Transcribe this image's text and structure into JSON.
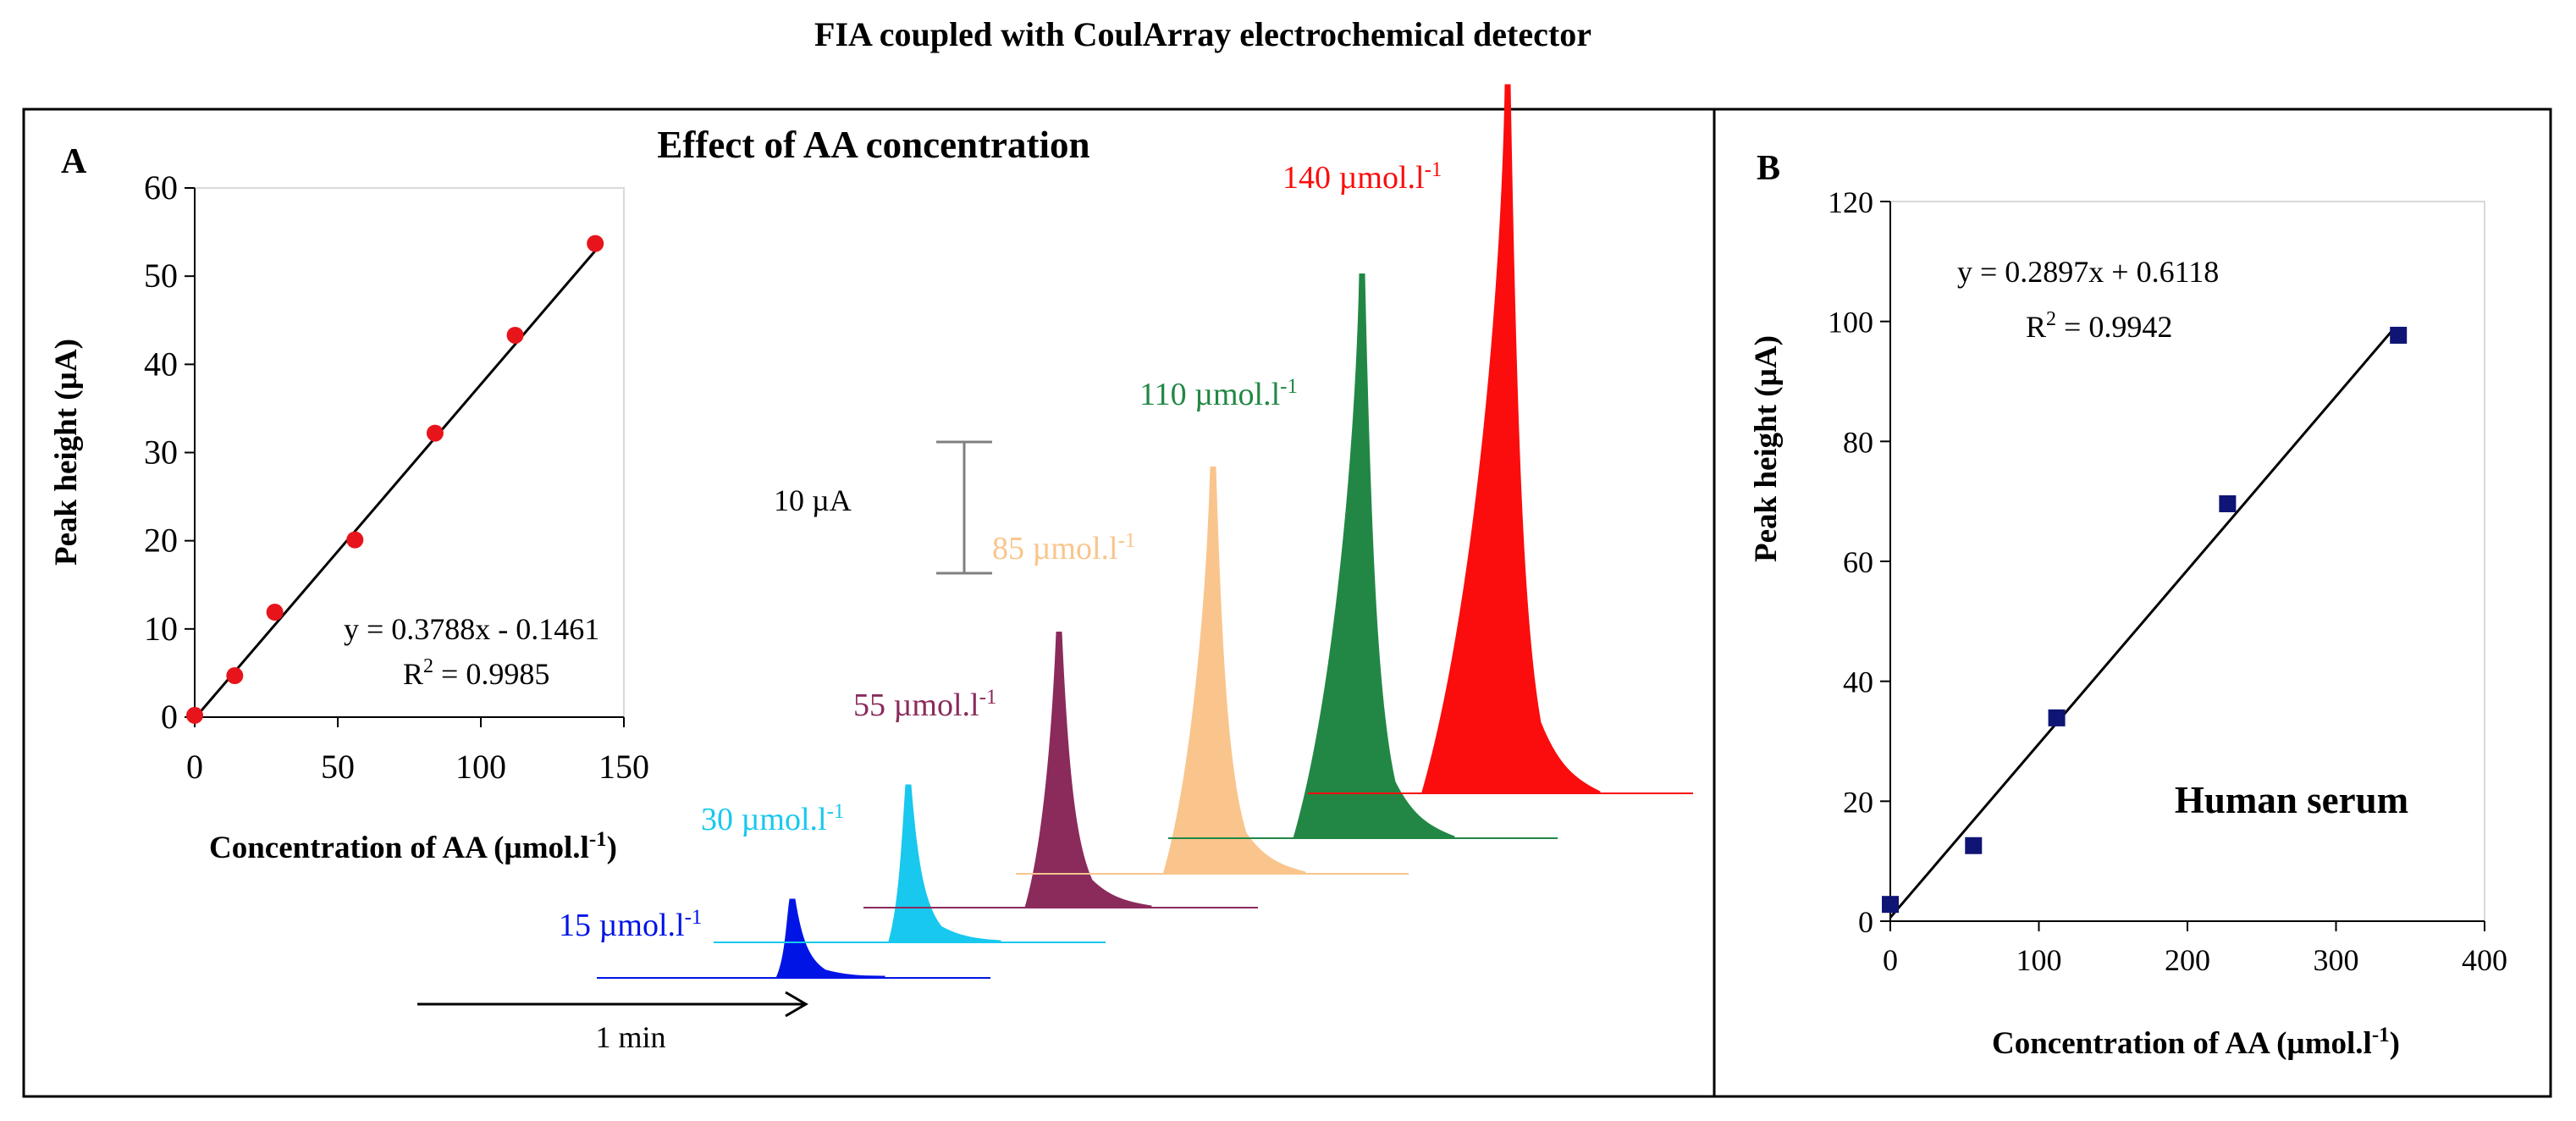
{
  "figure_title": "FIA coupled with CoulArray electrochemical detector",
  "chart_data": [
    {
      "id": "A",
      "type": "scatter",
      "panel_label": "A",
      "title": "Effect of AA concentration",
      "xlabel": "Concentration of AA (µmol.l",
      "xlabel_sup": "-1",
      "xlabel_end": ")",
      "ylabel": "Peak height (µA)",
      "xlim": [
        0,
        150
      ],
      "ylim": [
        0,
        60
      ],
      "xticks": [
        0,
        50,
        100,
        150
      ],
      "yticks": [
        0,
        10,
        20,
        30,
        40,
        50,
        60
      ],
      "marker_color": "#e8141b",
      "marker": "circle",
      "series": [
        {
          "name": "data",
          "x": [
            0,
            14,
            28,
            56,
            84,
            112,
            140
          ],
          "y": [
            0.2,
            4.7,
            11.9,
            20.1,
            32.2,
            43.3,
            53.7
          ]
        }
      ],
      "trendline": {
        "slope": 0.3788,
        "intercept": -0.1461,
        "x_range": [
          0,
          140
        ]
      },
      "equation": "y = 0.3788x - 0.1461",
      "r2_prefix": "R",
      "r2_sup": "2",
      "r2_value": " = 0.9985"
    },
    {
      "id": "B",
      "type": "scatter",
      "panel_label": "B",
      "xlabel": "Concentration of AA (µmol.l",
      "xlabel_sup": "-1",
      "xlabel_end": ")",
      "ylabel": "Peak height (µA)",
      "xlim": [
        0,
        400
      ],
      "ylim": [
        0,
        120
      ],
      "xticks": [
        0,
        100,
        200,
        300,
        400
      ],
      "yticks": [
        0,
        20,
        40,
        60,
        80,
        100,
        120
      ],
      "marker_color": "#0f1574",
      "marker": "square",
      "series": [
        {
          "name": "data",
          "x": [
            0,
            56,
            112,
            227,
            342
          ],
          "y": [
            2.8,
            12.6,
            33.9,
            69.6,
            97.7
          ]
        }
      ],
      "trendline": {
        "slope": 0.2897,
        "intercept": 0.6118,
        "x_range": [
          0,
          338
        ]
      },
      "equation": "y = 0.2897x + 0.6118",
      "r2_prefix": "R",
      "r2_sup": "2",
      "r2_value": " = 0.9942",
      "annotation": "Human serum"
    }
  ],
  "fia_peaks": [
    {
      "label": "15 µmol.l",
      "sup": "-1",
      "color": "#0014e6",
      "peak_height_uA": 6.0
    },
    {
      "label": "30 µmol.l",
      "sup": "-1",
      "color": "#18c8ee",
      "peak_height_uA": 12.0
    },
    {
      "label": "55 µmol.l",
      "sup": "-1",
      "color": "#8a2b5c",
      "peak_height_uA": 21.0
    },
    {
      "label": "85 µmol.l",
      "sup": "-1",
      "color": "#f9c58d",
      "peak_height_uA": 31.0
    },
    {
      "label": "110 µmol.l",
      "sup": "-1",
      "color": "#228745",
      "peak_height_uA": 43.0
    },
    {
      "label": "140 µmol.l",
      "sup": "-1",
      "color": "#fb0d0d",
      "peak_height_uA": 54.0
    }
  ],
  "scale_bar": {
    "label": "10 µA",
    "value_uA": 10
  },
  "time_bar": {
    "label": "1 min"
  }
}
